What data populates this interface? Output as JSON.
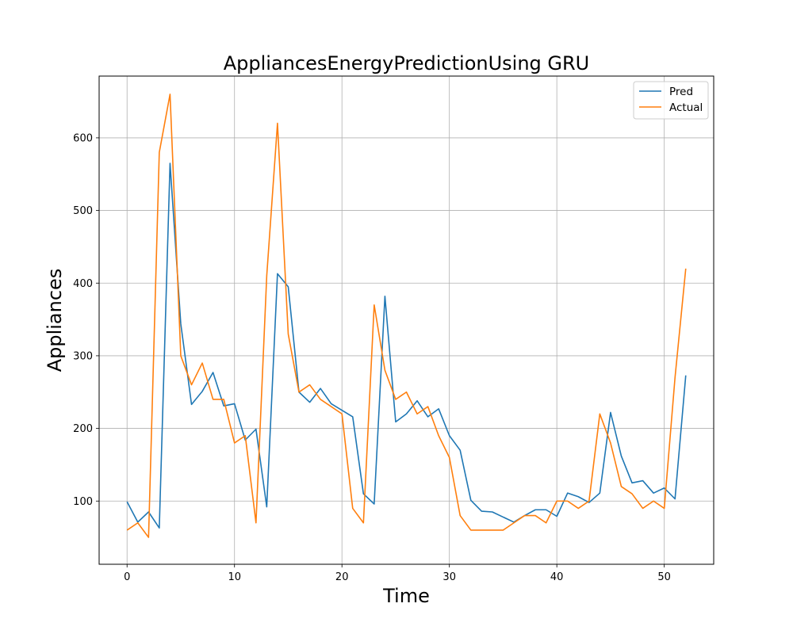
{
  "chart_data": {
    "type": "line",
    "title": "AppliancesEnergyPredictionUsing GRU",
    "xlabel": "Time",
    "ylabel": "Appliances",
    "xlim": [
      -2.6,
      54.6
    ],
    "ylim": [
      13,
      685
    ],
    "xticks": [
      0,
      10,
      20,
      30,
      40,
      50
    ],
    "yticks": [
      100,
      200,
      300,
      400,
      500,
      600
    ],
    "grid": true,
    "legend_position": "top-right",
    "series": [
      {
        "name": "Pred",
        "color": "#1f77b4",
        "values": [
          99,
          71,
          85,
          63,
          565,
          344,
          233,
          251,
          277,
          231,
          234,
          184,
          199,
          92,
          413,
          395,
          250,
          236,
          255,
          234,
          225,
          216,
          110,
          96,
          382,
          209,
          220,
          238,
          216,
          227,
          190,
          170,
          101,
          86,
          85,
          78,
          71,
          80,
          88,
          88,
          79,
          111,
          106,
          98,
          111,
          222,
          162,
          125,
          128,
          111,
          118,
          103,
          273
        ]
      },
      {
        "name": "Actual",
        "color": "#ff7f0e",
        "values": [
          60,
          70,
          50,
          580,
          660,
          300,
          260,
          290,
          240,
          240,
          180,
          190,
          70,
          410,
          620,
          330,
          250,
          260,
          240,
          230,
          220,
          90,
          70,
          370,
          280,
          240,
          250,
          220,
          230,
          190,
          160,
          80,
          60,
          60,
          60,
          60,
          70,
          80,
          80,
          70,
          100,
          100,
          90,
          100,
          220,
          180,
          120,
          110,
          90,
          100,
          90,
          270,
          420
        ]
      }
    ]
  }
}
